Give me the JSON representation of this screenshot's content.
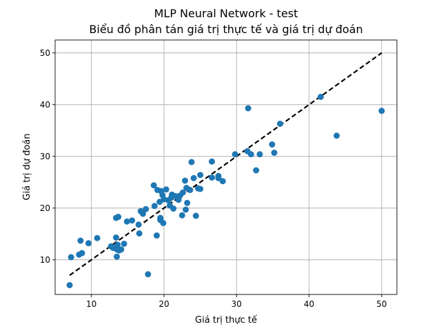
{
  "chart_data": {
    "type": "scatter",
    "title": "MLP Neural Network - test",
    "subtitle": "Biểu đồ phân tán giá trị thực tế và giá trị dự đoán",
    "xlabel": "Giá trị thực tế",
    "ylabel": "Giá trị dự đoán",
    "xlim": [
      5,
      52.1
    ],
    "ylim": [
      3.3,
      52.5
    ],
    "xticks": [
      10,
      20,
      30,
      40,
      50
    ],
    "yticks": [
      10,
      20,
      30,
      40,
      50
    ],
    "grid": true,
    "point_color": "#1f77b4",
    "reference_line": {
      "x": [
        7.0,
        50.0
      ],
      "y": [
        7.0,
        50.0
      ],
      "color": "#000000",
      "style": "dashed"
    },
    "x": [
      7.0,
      7.2,
      8.3,
      8.5,
      8.7,
      9.6,
      10.8,
      12.7,
      13.0,
      13.4,
      13.4,
      13.5,
      13.5,
      13.6,
      13.7,
      13.8,
      14.1,
      14.5,
      14.9,
      15.6,
      16.5,
      16.6,
      16.8,
      17.1,
      17.5,
      17.8,
      18.6,
      18.7,
      19.0,
      19.1,
      19.4,
      19.5,
      19.5,
      19.6,
      19.8,
      19.9,
      20.0,
      20.3,
      20.6,
      20.8,
      21.0,
      21.1,
      21.3,
      21.6,
      22.0,
      22.2,
      22.5,
      22.6,
      22.9,
      23.0,
      23.1,
      23.2,
      23.6,
      23.8,
      24.1,
      24.4,
      24.7,
      25.0,
      25.0,
      26.6,
      26.6,
      27.5,
      27.5,
      28.1,
      29.8,
      31.5,
      31.6,
      32.0,
      32.7,
      33.2,
      34.9,
      35.2,
      36.0,
      41.6,
      43.8,
      50.0
    ],
    "y": [
      5.1,
      10.5,
      11.0,
      13.7,
      11.3,
      13.2,
      14.2,
      12.6,
      12.3,
      14.3,
      18.1,
      10.6,
      12.0,
      12.9,
      18.3,
      11.8,
      12.0,
      13.1,
      17.4,
      17.6,
      16.8,
      15.1,
      19.4,
      18.9,
      19.8,
      7.2,
      24.4,
      20.4,
      14.7,
      23.5,
      21.2,
      18.1,
      17.7,
      23.3,
      22.5,
      17.1,
      21.7,
      23.6,
      21.5,
      20.5,
      22.0,
      22.6,
      19.9,
      22.3,
      21.6,
      22.4,
      18.6,
      23.0,
      25.3,
      19.7,
      23.9,
      21.0,
      23.5,
      28.9,
      25.8,
      18.5,
      23.8,
      23.7,
      26.4,
      29.0,
      25.9,
      26.2,
      25.8,
      25.2,
      30.4,
      31.0,
      39.3,
      30.4,
      27.3,
      30.4,
      32.3,
      30.7,
      36.3,
      41.5,
      34.0,
      38.8
    ]
  }
}
